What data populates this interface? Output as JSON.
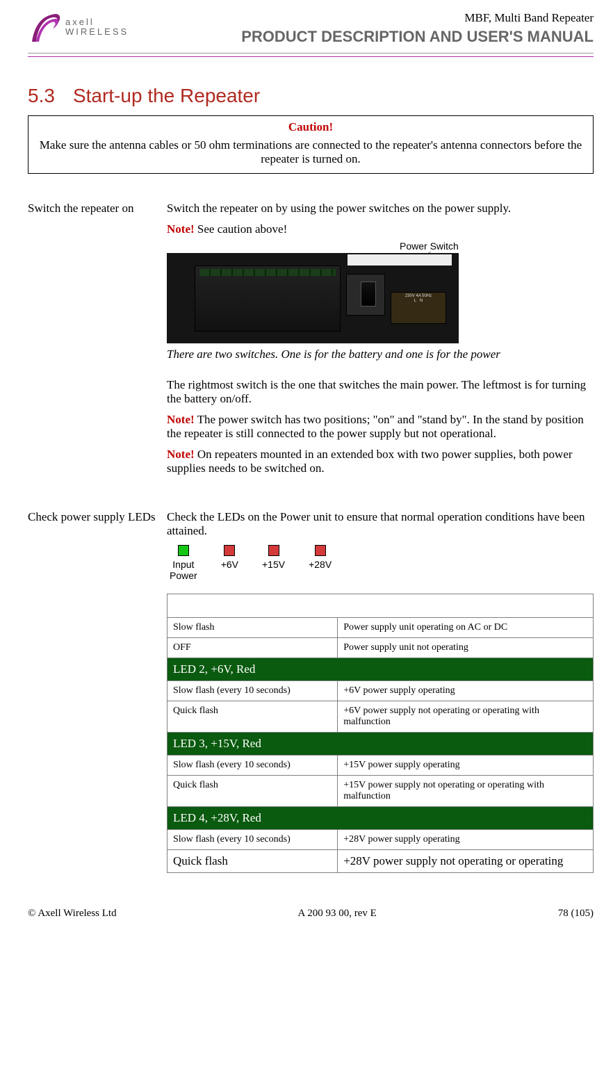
{
  "header": {
    "logo_line1": "axell",
    "logo_line2": "WIRELESS",
    "product": "MBF, Multi Band Repeater",
    "manual": "PRODUCT DESCRIPTION AND USER'S MANUAL"
  },
  "colors": {
    "accent_red": "#b02a20",
    "caution_red": "#c00000",
    "purple_rule": "#b030b0",
    "table_header_bg": "#0a5a0f",
    "table_header_fg": "#ffffff",
    "led_green": "#14c514",
    "led_red": "#d43a3a",
    "gray_text": "#666666"
  },
  "section": {
    "number": "5.3",
    "title": "Start-up the Repeater"
  },
  "caution": {
    "title": "Caution!",
    "body": "Make sure the antenna cables or 50 ohm terminations are connected to the repeater's antenna connectors before the repeater is turned on."
  },
  "step1": {
    "label": "Switch the repeater on",
    "p1": "Switch the repeater on by using the power switches on the power supply.",
    "note1_prefix": "Note!",
    "note1_body": " See caution above!",
    "photo_label": "Power Switch",
    "terminal_text": "230V 4A 50Hz\nL   N",
    "caption": "There are two switches. One is for the battery and one is for the power",
    "p2": "The rightmost switch is the one that switches the main power. The leftmost is for turning the battery on/off.",
    "note2_prefix": "Note!",
    "note2_body": " The power switch has two positions; \"on\" and \"stand by\". In the stand by position the repeater is still connected to the power supply but not operational.",
    "note3_prefix": "Note!",
    "note3_body": " On repeaters mounted in an extended box with two power supplies, both power supplies needs to be switched on."
  },
  "step2": {
    "label": "Check power supply LEDs",
    "intro": "Check the LEDs on the Power unit to ensure that normal operation conditions have been attained.",
    "leds": [
      {
        "label": "Input\nPower",
        "color": "#14c514"
      },
      {
        "label": "+6V",
        "color": "#d43a3a"
      },
      {
        "label": "+15V",
        "color": "#d43a3a"
      },
      {
        "label": "+28V",
        "color": "#d43a3a"
      }
    ],
    "table": {
      "groups": [
        {
          "title": null,
          "rows": [
            {
              "state": "Slow flash",
              "meaning": "Power supply unit operating on AC or DC"
            },
            {
              "state": "OFF",
              "meaning": "Power supply unit not operating"
            }
          ]
        },
        {
          "title": "LED 2, +6V, Red",
          "rows": [
            {
              "state": "Slow flash (every 10 seconds)",
              "meaning": "+6V power supply operating"
            },
            {
              "state": "Quick flash",
              "meaning": "+6V power supply not operating or operating with malfunction"
            }
          ]
        },
        {
          "title": "LED 3, +15V, Red",
          "rows": [
            {
              "state": "Slow flash (every 10 seconds)",
              "meaning": "+15V power supply operating"
            },
            {
              "state": "Quick flash",
              "meaning": "+15V power supply not operating or operating with malfunction"
            }
          ]
        },
        {
          "title": "LED 4, +28V, Red",
          "rows": [
            {
              "state": "Slow flash (every 10 seconds)",
              "meaning": "+28V power supply operating"
            },
            {
              "state": "Quick flash",
              "meaning": "+28V power supply not operating or operating",
              "big": true
            }
          ]
        }
      ]
    }
  },
  "footer": {
    "left": "© Axell Wireless Ltd",
    "center": "A 200 93 00, rev E",
    "right": "78 (105)"
  }
}
